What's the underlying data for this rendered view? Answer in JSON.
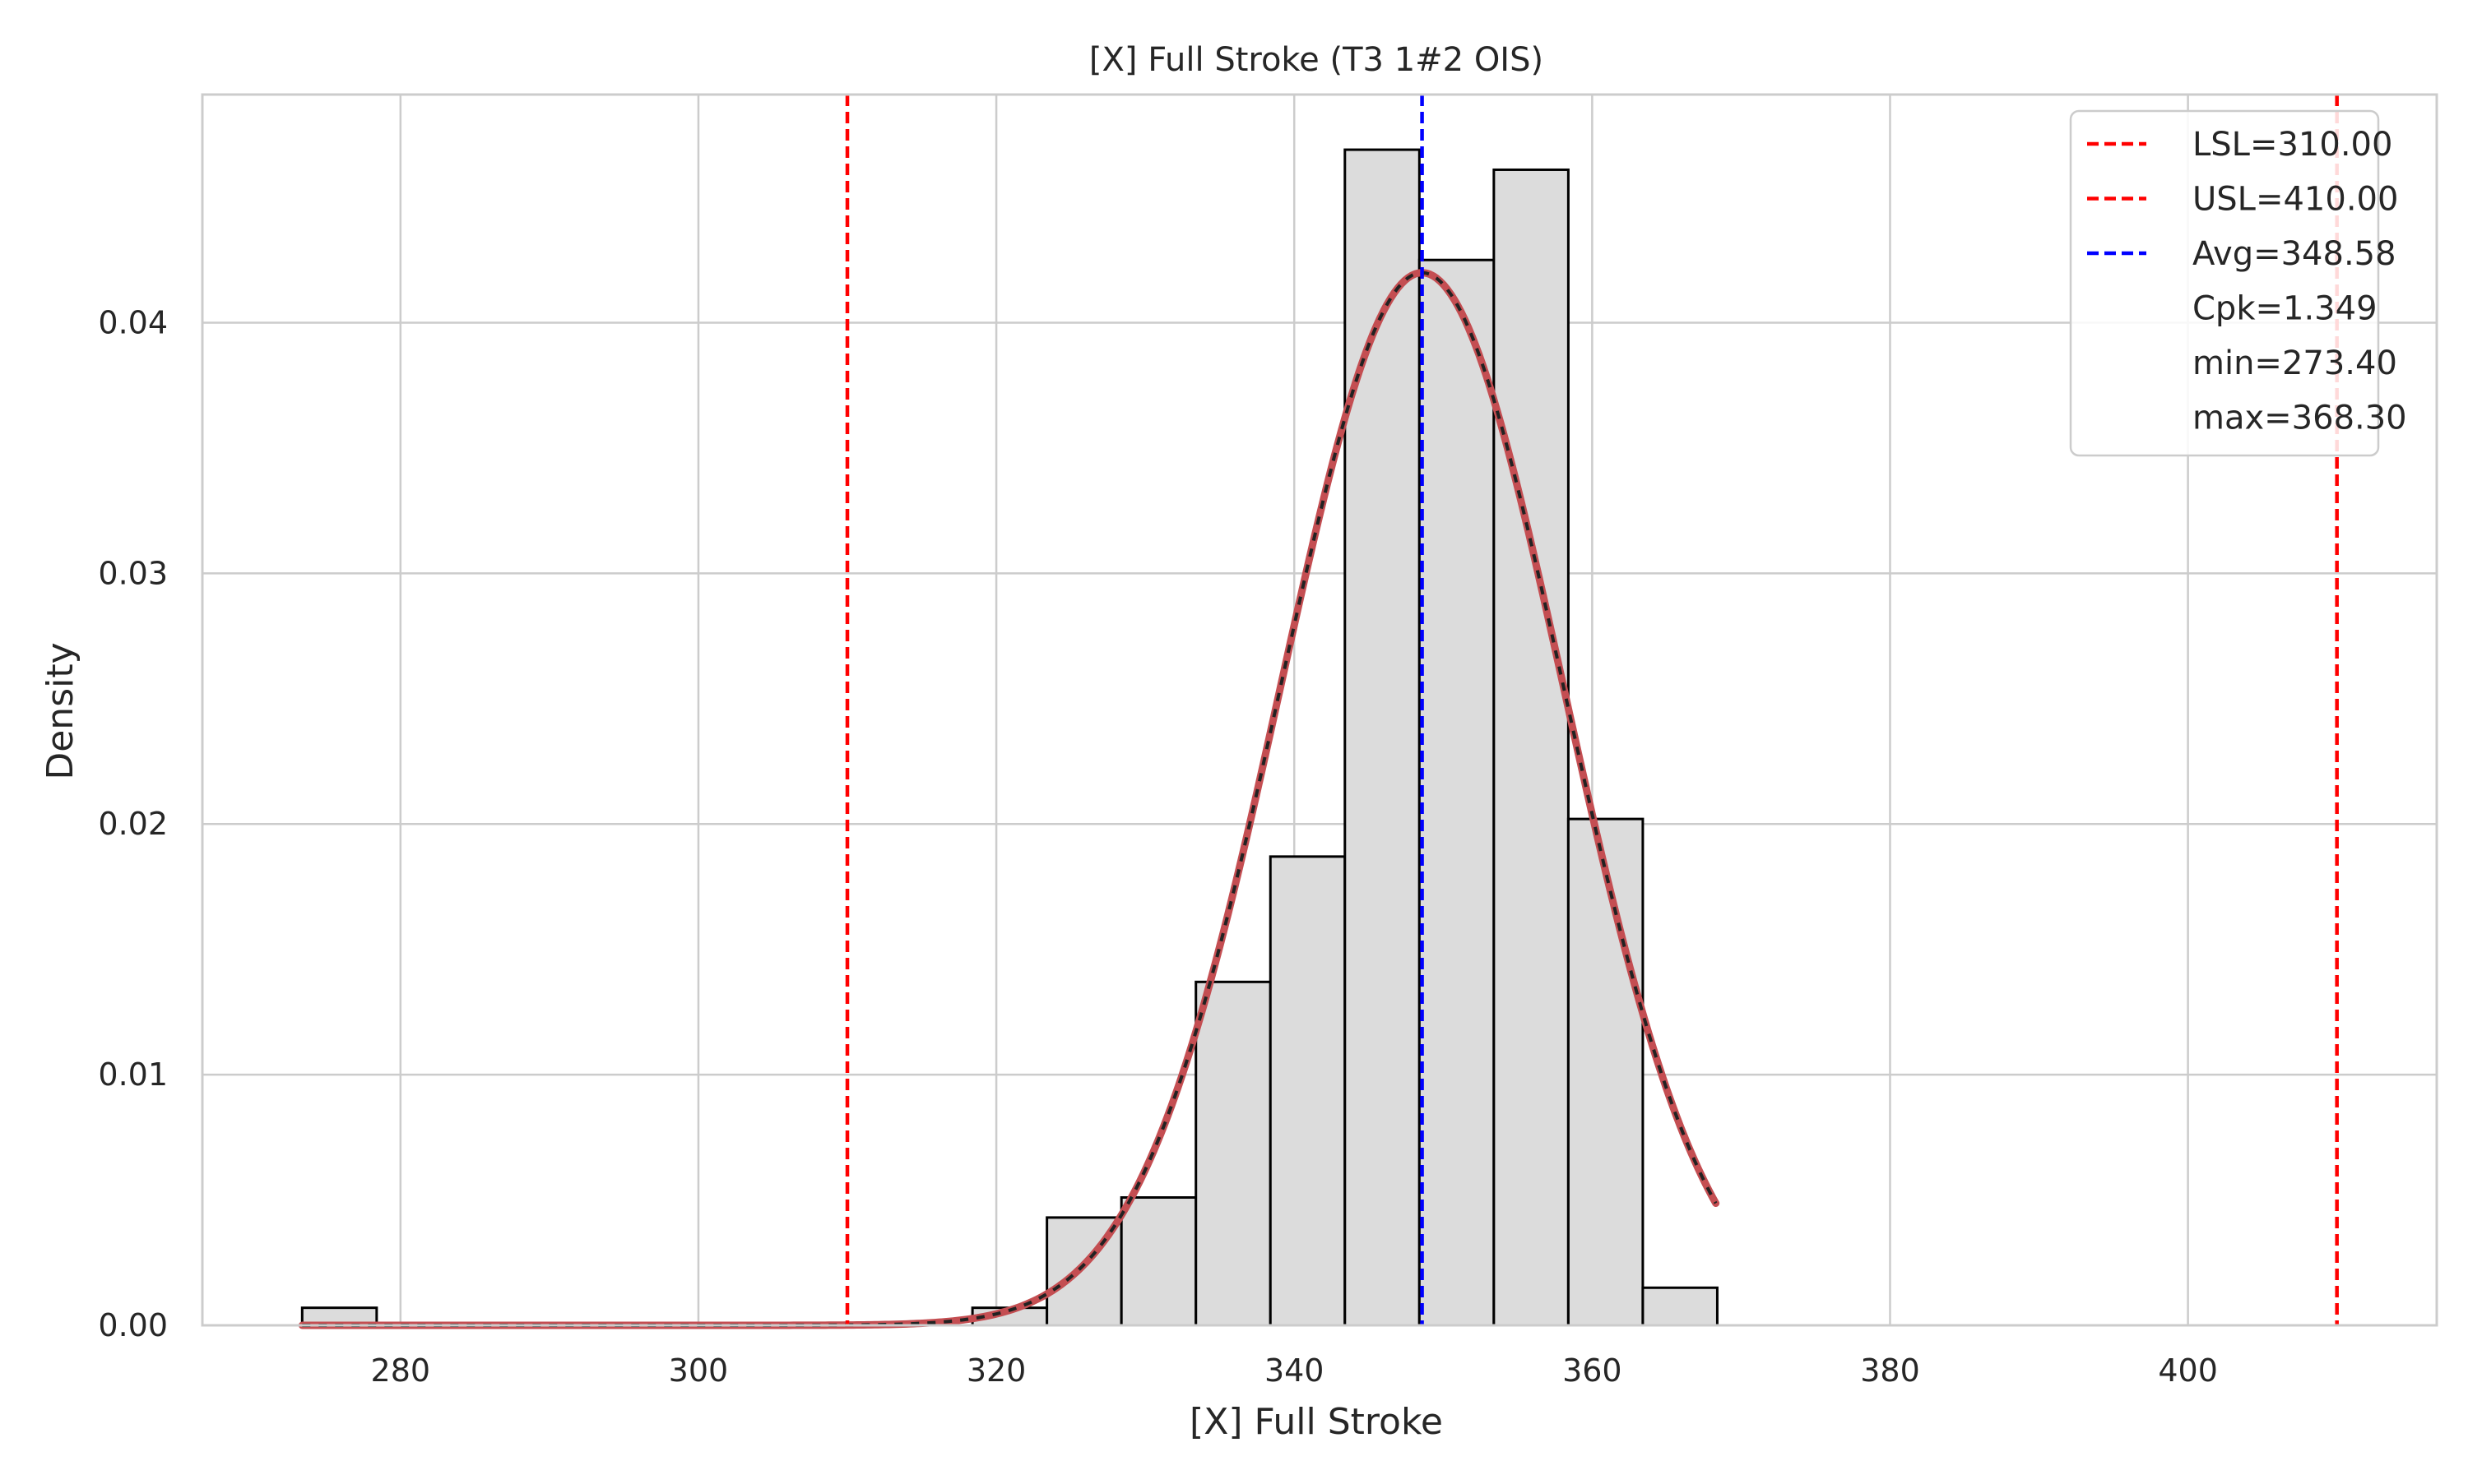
{
  "chart_data": {
    "type": "bar",
    "title": "[X] Full Stroke (T3 1#2 OIS)",
    "xlabel": "[X] Full Stroke",
    "ylabel": "Density",
    "xlim": [
      266.7,
      416.7
    ],
    "ylim": [
      0,
      0.0491
    ],
    "xticks": [
      280,
      300,
      320,
      340,
      360,
      380,
      400
    ],
    "yticks": [
      0.0,
      0.01,
      0.02,
      0.03,
      0.04
    ],
    "ytick_labels": [
      "0.00",
      "0.01",
      "0.02",
      "0.03",
      "0.04"
    ],
    "grid": true,
    "bins": {
      "edges": [
        273.4,
        278.4,
        283.4,
        288.4,
        293.4,
        298.4,
        303.4,
        308.4,
        313.4,
        318.4,
        323.4,
        328.4,
        333.4,
        338.4,
        343.4,
        348.4,
        353.4,
        358.4,
        363.4,
        368.4
      ],
      "values": [
        0.0007,
        0,
        0,
        0,
        0,
        0,
        0,
        0,
        0,
        0.0007,
        0.0043,
        0.0051,
        0.0137,
        0.0187,
        0.0469,
        0.0425,
        0.0461,
        0.0202,
        0.0015
      ]
    },
    "normal_fit": {
      "mean": 348.58,
      "std": 9.5,
      "x_range": [
        273.4,
        368.3
      ],
      "color": "#c44e52"
    },
    "ref_lines": [
      {
        "value": 310.0,
        "label": "LSL=310.00",
        "color": "#ff0000"
      },
      {
        "value": 410.0,
        "label": "USL=410.00",
        "color": "#ff0000"
      },
      {
        "value": 348.58,
        "label": "Avg=348.58",
        "color": "#0000ff"
      }
    ],
    "legend_text": [
      "Cpk=1.349",
      "min=273.40",
      "max=368.30"
    ],
    "legend_position": "top-right",
    "colors": {
      "bar_fill": "#dcdcdc",
      "bar_edge": "#000000",
      "grid": "#cccccc",
      "axes_edge": "#cccccc"
    }
  }
}
